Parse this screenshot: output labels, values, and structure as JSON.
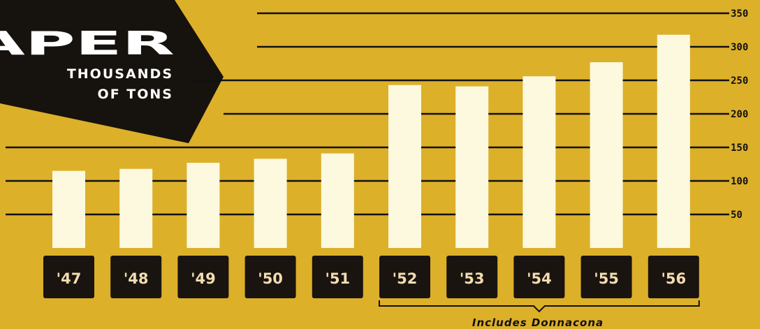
{
  "chart_data": {
    "type": "bar",
    "title": "APER",
    "subtitle_lines": [
      "THOUSANDS",
      "OF TONS"
    ],
    "categories": [
      "'47",
      "'48",
      "'49",
      "'50",
      "'51",
      "'52",
      "'53",
      "'54",
      "'55",
      "'56"
    ],
    "values": [
      115,
      118,
      127,
      133,
      141,
      243,
      241,
      256,
      277,
      318
    ],
    "yticks": [
      50,
      100,
      150,
      200,
      250,
      300,
      350
    ],
    "ylim": [
      0,
      350
    ],
    "grid": true,
    "annotation": "Includes Donnacona",
    "annotation_range": [
      "'52",
      "'56"
    ],
    "colors": {
      "background": "#ddb02a",
      "bar": "#fdf9de",
      "label_box": "#1a1410",
      "label_text": "#f2ddb0",
      "banner": "#16120d",
      "gridline": "#111111"
    }
  }
}
